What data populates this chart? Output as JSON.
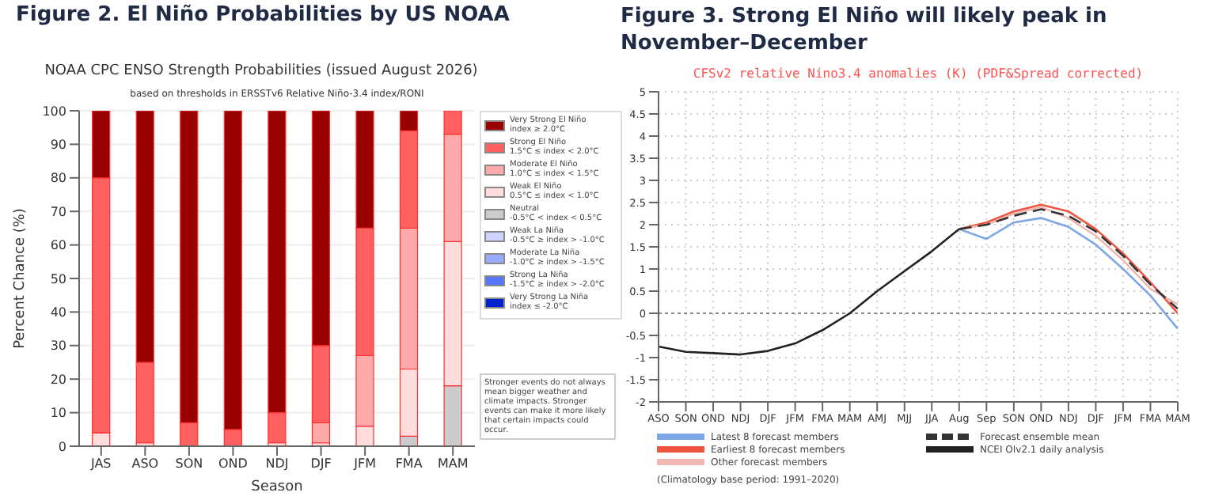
{
  "chart_data": [
    {
      "type": "bar",
      "title": "Figure 2. El Niño Probabilities by US NOAA",
      "subtitle": "NOAA CPC ENSO Strength Probabilities (issued August 2026)",
      "annotations": [
        "based on thresholds in ERSSTv6 Relative Niño-3.4 index/RONI",
        "Stronger events do not always mean bigger weather and climate impacts. Stronger events can make it more likely that certain impacts could occur."
      ],
      "xlabel": "Season",
      "ylabel": "Percent Chance (%)",
      "categories": [
        "JAS",
        "ASO",
        "SON",
        "OND",
        "NDJ",
        "DJF",
        "JFM",
        "FMA",
        "MAM"
      ],
      "stacked": true,
      "ylim": [
        0,
        100
      ],
      "yticks": [
        0,
        10,
        20,
        30,
        40,
        50,
        60,
        70,
        80,
        90,
        100
      ],
      "grid": "y",
      "legend": "right",
      "series": [
        {
          "name": "Very Strong La Niña\nindex ≤ -2.0°C",
          "color": "#0022cc",
          "values": [
            0,
            0,
            0,
            0,
            0,
            0,
            0,
            0,
            0
          ]
        },
        {
          "name": "Strong La Niña\n-1.5°C ≥ index > -2.0°C",
          "color": "#5577ff",
          "values": [
            0,
            0,
            0,
            0,
            0,
            0,
            0,
            0,
            0
          ]
        },
        {
          "name": "Moderate La Niña\n-1.0°C ≥ index > -1.5°C",
          "color": "#99aaff",
          "values": [
            0,
            0,
            0,
            0,
            0,
            0,
            0,
            0,
            0
          ]
        },
        {
          "name": "Weak La Niña\n-0.5°C ≥ index > -1.0°C",
          "color": "#ccd4ff",
          "values": [
            0,
            0,
            0,
            0,
            0,
            0,
            0,
            0,
            0
          ]
        },
        {
          "name": "Neutral\n-0.5°C < index < 0.5°C",
          "color": "#cccccc",
          "values": [
            0,
            0,
            0,
            0,
            0,
            0,
            0,
            3,
            18
          ]
        },
        {
          "name": "Weak El Niño\n0.5°C ≤ index < 1.0°C",
          "color": "#ffdddd",
          "values": [
            4,
            1,
            0,
            0,
            1,
            1,
            6,
            20,
            43
          ]
        },
        {
          "name": "Moderate El Niño\n1.0°C ≤ index < 1.5°C",
          "color": "#ffaaaa",
          "values": [
            0,
            0,
            0,
            0,
            0,
            6,
            21,
            42,
            32
          ]
        },
        {
          "name": "Strong El Niño\n1.5°C ≤ index < 2.0°C",
          "color": "#ff6060",
          "values": [
            76,
            24,
            7,
            5,
            9,
            23,
            38,
            29,
            7
          ]
        },
        {
          "name": "Very Strong El Niño\nindex ≥ 2.0°C",
          "color": "#990000",
          "values": [
            20,
            75,
            93,
            95,
            90,
            70,
            35,
            6,
            0
          ]
        }
      ]
    },
    {
      "type": "line",
      "title": "Figure 3. Strong El Niño will likely peak in November–December",
      "subtitle": "CFSv2 relative Nino3.4 anomalies (K) (PDF&Spread corrected)",
      "annotations": [
        "(Climatology base period: 1991–2020)"
      ],
      "categories": [
        "ASO",
        "SON",
        "OND",
        "NDJ",
        "DJF",
        "JFM",
        "FMA",
        "MAM",
        "AMJ",
        "MJJ",
        "JJA",
        "Aug",
        "Sep",
        "SON",
        "OND",
        "NDJ",
        "DJF",
        "JFM",
        "FMA",
        "MAM"
      ],
      "ylim": [
        -2,
        5
      ],
      "yticks": [
        -2,
        -1.5,
        -1,
        -0.5,
        0,
        0.5,
        1,
        1.5,
        2,
        2.5,
        3,
        3.5,
        4,
        4.5,
        5
      ],
      "grid": true,
      "legend": "bottom",
      "ref_lines": [
        {
          "axis": "y",
          "value": 0,
          "color": "#888888",
          "line_style": "dotted"
        }
      ],
      "series": [
        {
          "name": "Latest 8 forecast members",
          "color": "#7fa6e6",
          "values": [
            null,
            null,
            null,
            null,
            null,
            null,
            null,
            null,
            null,
            null,
            null,
            1.9,
            1.68,
            2.05,
            2.15,
            1.95,
            1.55,
            1.0,
            0.4,
            -0.35
          ]
        },
        {
          "name": "Earliest 8 forecast members",
          "color": "#ee5540",
          "values": [
            null,
            null,
            null,
            null,
            null,
            null,
            null,
            null,
            null,
            null,
            null,
            1.9,
            2.05,
            2.3,
            2.45,
            2.3,
            1.9,
            1.35,
            0.7,
            0.0
          ]
        },
        {
          "name": "Other forecast members",
          "color": "#f0b8b0",
          "values": [
            null,
            null,
            null,
            null,
            null,
            null,
            null,
            null,
            null,
            null,
            null,
            1.9,
            2.0,
            2.25,
            2.4,
            2.15,
            1.75,
            1.2,
            0.55,
            0.2
          ]
        },
        {
          "name": "Forecast ensemble mean",
          "color": "#333333",
          "line_style": "dashed",
          "values": [
            null,
            null,
            null,
            null,
            null,
            null,
            null,
            null,
            null,
            null,
            null,
            1.9,
            2.0,
            2.2,
            2.35,
            2.2,
            1.85,
            1.3,
            0.65,
            0.1
          ]
        },
        {
          "name": "NCEI OIv2.1 daily analysis",
          "color": "#222222",
          "line_style": "solid",
          "values": [
            -0.75,
            -0.87,
            -0.9,
            -0.93,
            -0.85,
            -0.68,
            -0.38,
            0.0,
            0.5,
            0.95,
            1.4,
            1.9,
            null,
            null,
            null,
            null,
            null,
            null,
            null,
            null
          ]
        }
      ]
    }
  ]
}
